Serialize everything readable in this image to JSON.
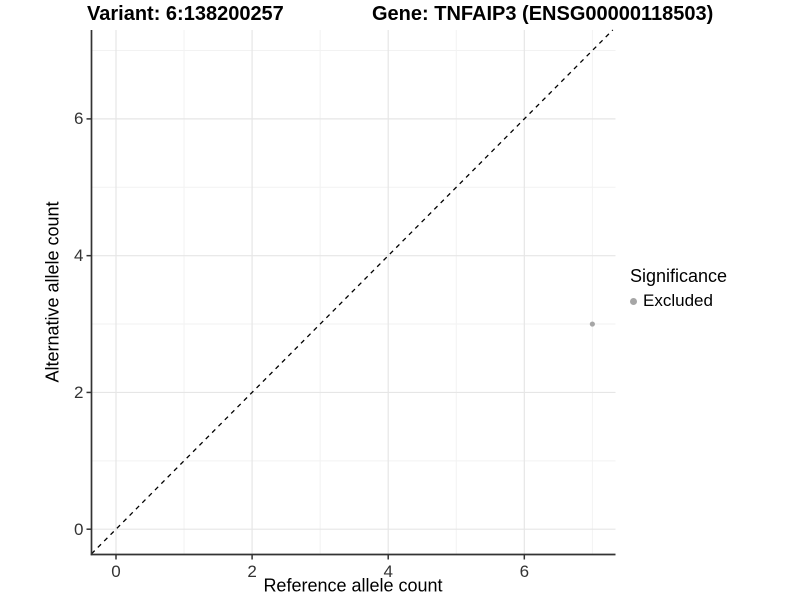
{
  "chart_data": {
    "type": "scatter",
    "title_left": "Variant: 6:138200257",
    "title_right": "Gene: TNFAIP3 (ENSG00000118503)",
    "xlabel": "Reference allele count",
    "ylabel": "Alternative allele count",
    "xlim": [
      -0.36,
      7.34
    ],
    "ylim": [
      -0.37,
      7.3
    ],
    "x_major_ticks": [
      0,
      2,
      4,
      6
    ],
    "y_major_ticks": [
      0,
      2,
      4,
      6
    ],
    "x_minor_ticks": [
      1,
      3,
      5,
      7
    ],
    "y_minor_ticks": [
      1,
      3,
      5,
      7
    ],
    "grid": true,
    "identity_line": {
      "style": "dashed",
      "color": "#000000",
      "from": -0.36,
      "to": 7.3
    },
    "series": [
      {
        "name": "Excluded",
        "marker": "circle",
        "color": "#a6a6a6",
        "points": [
          [
            7,
            3
          ]
        ]
      }
    ],
    "legend": {
      "title": "Significance",
      "position": "right",
      "items": [
        {
          "label": "Excluded",
          "color": "#a6a6a6"
        }
      ]
    },
    "colors": {
      "background": "#ffffff",
      "axis_line": "#333333",
      "tick_mark": "#333333",
      "tick_label": "#333333",
      "grid_major": "#e6e6e6",
      "grid_minor": "#f2f2f2"
    }
  }
}
